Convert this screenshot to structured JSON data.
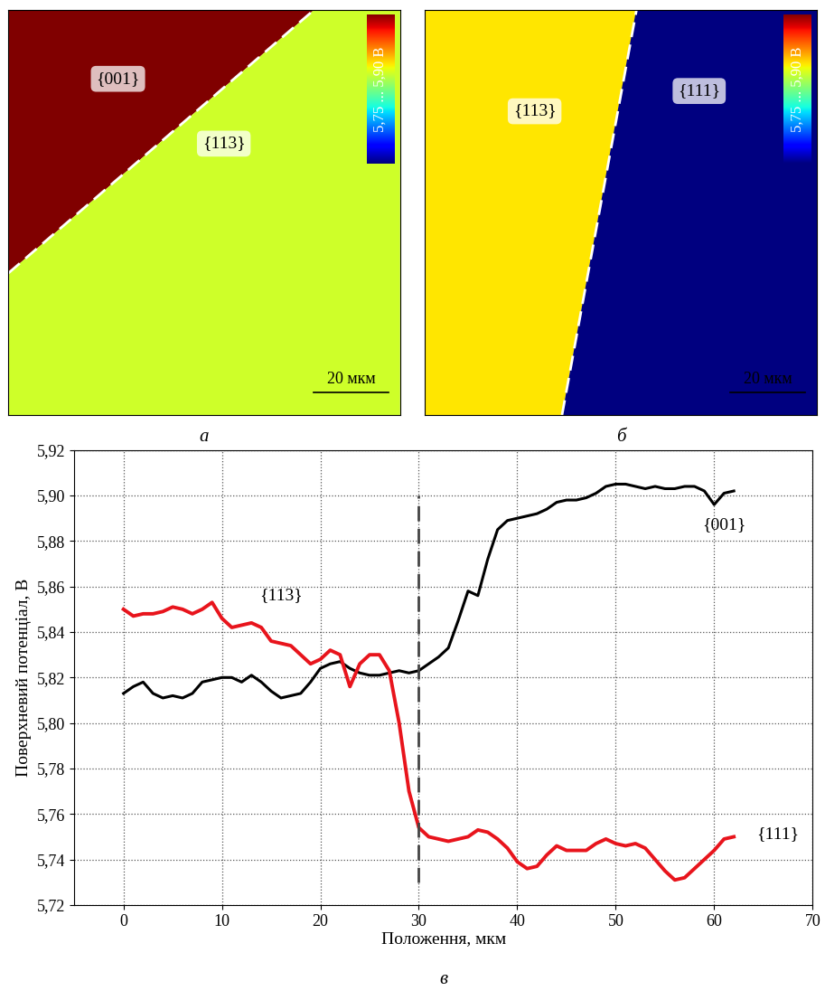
{
  "chart_data": [
    {
      "type": "map",
      "caption": "а",
      "regions": [
        {
          "name": "{001}",
          "value": 5.9
        },
        {
          "name": "{113}",
          "value": 5.84
        }
      ],
      "color_range": [
        5.75,
        5.9
      ],
      "colorbar_label": "5,75 ... 5,90 В",
      "scale_bar": "20 мкм"
    },
    {
      "type": "map",
      "caption": "б",
      "regions": [
        {
          "name": "{113}",
          "value": 5.85
        },
        {
          "name": "{111}",
          "value": 5.75
        }
      ],
      "color_range": [
        5.75,
        5.9
      ],
      "colorbar_label": "5,75 ... 5,90 В",
      "scale_bar": "20 мкм"
    },
    {
      "type": "line",
      "caption": "в",
      "x_label": "Положення, мкм",
      "y_label": "Поверхневий потенціал, В",
      "x": [
        0,
        1,
        2,
        3,
        4,
        5,
        6,
        7,
        8,
        9,
        10,
        11,
        12,
        13,
        14,
        15,
        16,
        17,
        18,
        19,
        20,
        21,
        22,
        23,
        24,
        25,
        26,
        27,
        28,
        29,
        30,
        31,
        32,
        33,
        34,
        35,
        36,
        37,
        38,
        39,
        40,
        41,
        42,
        43,
        44,
        45,
        46,
        47,
        48,
        49,
        50,
        51,
        52,
        53,
        54,
        55,
        56,
        57,
        58,
        59,
        60,
        61,
        62
      ],
      "series": [
        {
          "color": "#000000",
          "values": [
            5.813,
            5.816,
            5.818,
            5.813,
            5.811,
            5.812,
            5.811,
            5.813,
            5.818,
            5.819,
            5.82,
            5.82,
            5.818,
            5.821,
            5.818,
            5.814,
            5.811,
            5.812,
            5.813,
            5.818,
            5.824,
            5.826,
            5.827,
            5.824,
            5.822,
            5.821,
            5.821,
            5.822,
            5.823,
            5.822,
            5.823,
            5.826,
            5.829,
            5.833,
            5.845,
            5.858,
            5.856,
            5.872,
            5.885,
            5.889,
            5.89,
            5.891,
            5.892,
            5.894,
            5.897,
            5.898,
            5.898,
            5.899,
            5.901,
            5.904,
            5.905,
            5.905,
            5.904,
            5.903,
            5.904,
            5.903,
            5.903,
            5.904,
            5.904,
            5.902,
            5.896,
            5.901,
            5.902
          ]
        },
        {
          "color": "#e8141c",
          "values": [
            5.85,
            5.847,
            5.848,
            5.848,
            5.849,
            5.851,
            5.85,
            5.848,
            5.85,
            5.853,
            5.846,
            5.842,
            5.843,
            5.844,
            5.842,
            5.836,
            5.835,
            5.834,
            5.83,
            5.826,
            5.828,
            5.832,
            5.83,
            5.816,
            5.826,
            5.83,
            5.83,
            5.823,
            5.8,
            5.77,
            5.754,
            5.75,
            5.749,
            5.748,
            5.749,
            5.75,
            5.753,
            5.752,
            5.749,
            5.745,
            5.739,
            5.736,
            5.737,
            5.742,
            5.746,
            5.744,
            5.744,
            5.744,
            5.747,
            5.749,
            5.747,
            5.746,
            5.747,
            5.745,
            5.74,
            5.735,
            5.731,
            5.732,
            5.736,
            5.74,
            5.744,
            5.749,
            5.75
          ]
        }
      ],
      "vline": 30,
      "annotations": [
        {
          "text": "{001}",
          "x": 61,
          "y": 5.887
        },
        {
          "text": "{113}",
          "x": 16,
          "y": 5.856
        },
        {
          "text": "{111}",
          "x": 66.5,
          "y": 5.751
        }
      ],
      "xlim": [
        -5,
        70
      ],
      "xticks": [
        0,
        10,
        20,
        30,
        40,
        50,
        60,
        70
      ],
      "ylim": [
        5.72,
        5.92
      ],
      "yticks": [
        {
          "value": 5.72,
          "label": "5,72"
        },
        {
          "value": 5.74,
          "label": "5,74"
        },
        {
          "value": 5.76,
          "label": "5,76"
        },
        {
          "value": 5.78,
          "label": "5,78"
        },
        {
          "value": 5.8,
          "label": "5,80"
        },
        {
          "value": 5.82,
          "label": "5,82"
        },
        {
          "value": 5.84,
          "label": "5,84"
        },
        {
          "value": 5.86,
          "label": "5,86"
        },
        {
          "value": 5.88,
          "label": "5,88"
        },
        {
          "value": 5.9,
          "label": "5,90"
        },
        {
          "value": 5.92,
          "label": "5,92"
        }
      ],
      "grid": true
    }
  ]
}
